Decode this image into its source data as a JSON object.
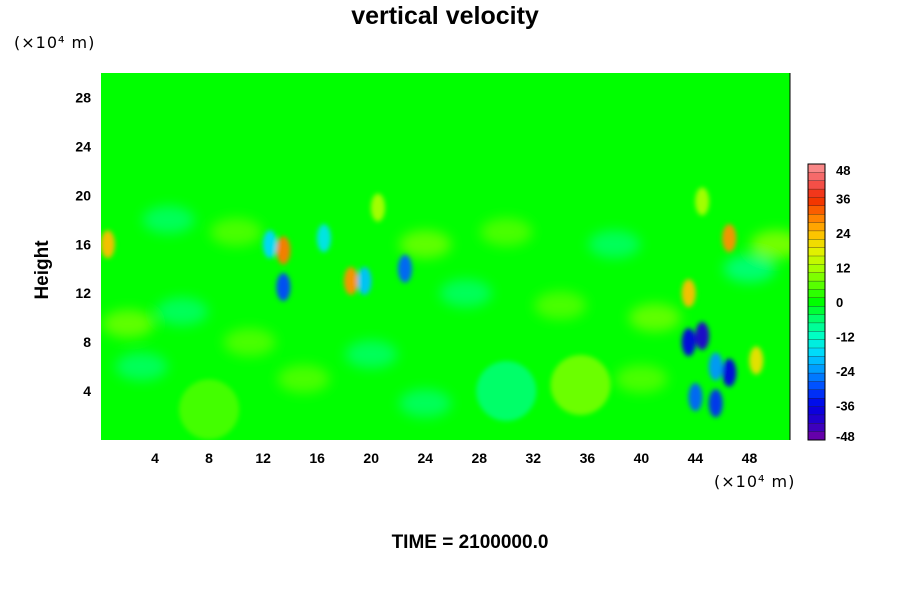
{
  "chart_data": {
    "type": "heatmap",
    "title": "vertical velocity",
    "ylabel": "Height",
    "x_unit_label": "(×10⁴ m)",
    "y_unit_label": "(×10⁴ m)",
    "footer": "TIME = 2100000.0",
    "xlim": [
      0,
      51
    ],
    "ylim": [
      0,
      30
    ],
    "x_ticks": [
      "4",
      "8",
      "12",
      "16",
      "20",
      "24",
      "28",
      "32",
      "36",
      "40",
      "44",
      "48"
    ],
    "y_ticks": [
      "4",
      "8",
      "12",
      "16",
      "20",
      "24",
      "28"
    ],
    "colorbar": {
      "min": -48,
      "max": 48,
      "levels": 33,
      "ticks": [
        "48",
        "36",
        "24",
        "12",
        "0",
        "-12",
        "-24",
        "-36",
        "-48"
      ]
    },
    "background_value": 0,
    "features": [
      {
        "x": 0.5,
        "y": 16,
        "value": 24
      },
      {
        "x": 13.5,
        "y": 15.5,
        "value": 30
      },
      {
        "x": 13.5,
        "y": 12.5,
        "value": -30
      },
      {
        "x": 12.5,
        "y": 16,
        "value": -18
      },
      {
        "x": 16.5,
        "y": 16.5,
        "value": -16
      },
      {
        "x": 18.5,
        "y": 13,
        "value": 28
      },
      {
        "x": 19.5,
        "y": 13,
        "value": -20
      },
      {
        "x": 22.5,
        "y": 14,
        "value": -28
      },
      {
        "x": 20.5,
        "y": 19,
        "value": 12
      },
      {
        "x": 43.5,
        "y": 8,
        "value": -36
      },
      {
        "x": 44.5,
        "y": 8.5,
        "value": -40
      },
      {
        "x": 45.5,
        "y": 6,
        "value": -24
      },
      {
        "x": 46.5,
        "y": 5.5,
        "value": -36
      },
      {
        "x": 44,
        "y": 3.5,
        "value": -28
      },
      {
        "x": 45.5,
        "y": 3.0,
        "value": -32
      },
      {
        "x": 48.5,
        "y": 6.5,
        "value": 20
      },
      {
        "x": 46.5,
        "y": 16.5,
        "value": 28
      },
      {
        "x": 43.5,
        "y": 12,
        "value": 24
      },
      {
        "x": 44.5,
        "y": 19.5,
        "value": 12
      },
      {
        "x": 35.5,
        "y": 4.5,
        "value": 10
      },
      {
        "x": 30,
        "y": 4,
        "value": -8
      },
      {
        "x": 8,
        "y": 2.5,
        "value": 6
      }
    ]
  }
}
